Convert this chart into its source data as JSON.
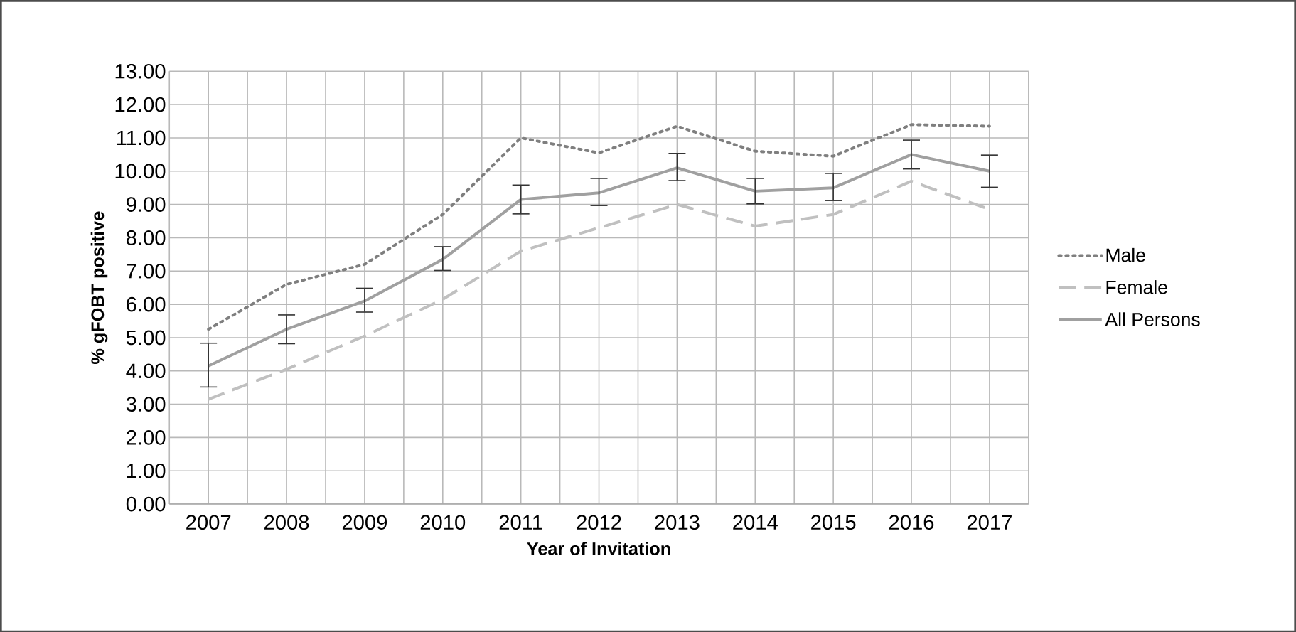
{
  "chart_data": {
    "type": "line",
    "xlabel": "Year of Invitation",
    "ylabel": "% gFOBT positive",
    "categories": [
      "2007",
      "2008",
      "2009",
      "2010",
      "2011",
      "2012",
      "2013",
      "2014",
      "2015",
      "2016",
      "2017"
    ],
    "series": [
      {
        "name": "Male",
        "color": "#7f7f7f",
        "line_style": "dotted",
        "values": [
          5.25,
          6.6,
          7.2,
          8.7,
          11.0,
          10.55,
          11.35,
          10.6,
          10.45,
          11.4,
          11.35
        ]
      },
      {
        "name": "Female",
        "color": "#c0c0c0",
        "line_style": "dashed",
        "values": [
          3.15,
          4.05,
          5.05,
          6.15,
          7.6,
          8.3,
          9.0,
          8.35,
          8.7,
          9.7,
          8.85
        ]
      },
      {
        "name": "All Persons",
        "color": "#a0a0a0",
        "line_style": "solid",
        "values": [
          4.15,
          5.25,
          6.1,
          7.35,
          9.15,
          9.35,
          10.1,
          9.4,
          9.5,
          10.5,
          10.0
        ],
        "errors": [
          [
            3.5,
            4.85
          ],
          [
            4.8,
            5.7
          ],
          [
            5.75,
            6.5
          ],
          [
            7.0,
            7.75
          ],
          [
            8.7,
            9.6
          ],
          [
            8.95,
            9.8
          ],
          [
            9.7,
            10.55
          ],
          [
            9.0,
            9.8
          ],
          [
            9.1,
            9.95
          ],
          [
            10.05,
            10.95
          ],
          [
            9.5,
            10.5
          ]
        ]
      }
    ],
    "ylim": [
      0,
      13
    ],
    "yticks": [
      {
        "value": 0,
        "label": "0.00"
      },
      {
        "value": 1,
        "label": "1.00"
      },
      {
        "value": 2,
        "label": "2.00"
      },
      {
        "value": 3,
        "label": "3.00"
      },
      {
        "value": 4,
        "label": "4.00"
      },
      {
        "value": 5,
        "label": "5.00"
      },
      {
        "value": 6,
        "label": "6.00"
      },
      {
        "value": 7,
        "label": "7.00"
      },
      {
        "value": 8,
        "label": "8.00"
      },
      {
        "value": 9,
        "label": "9.00"
      },
      {
        "value": 10,
        "label": "10.00"
      },
      {
        "value": 11,
        "label": "11.00"
      },
      {
        "value": 12,
        "label": "12.00"
      },
      {
        "value": 13,
        "label": "13.00"
      }
    ],
    "grid": true,
    "legend": "right"
  }
}
